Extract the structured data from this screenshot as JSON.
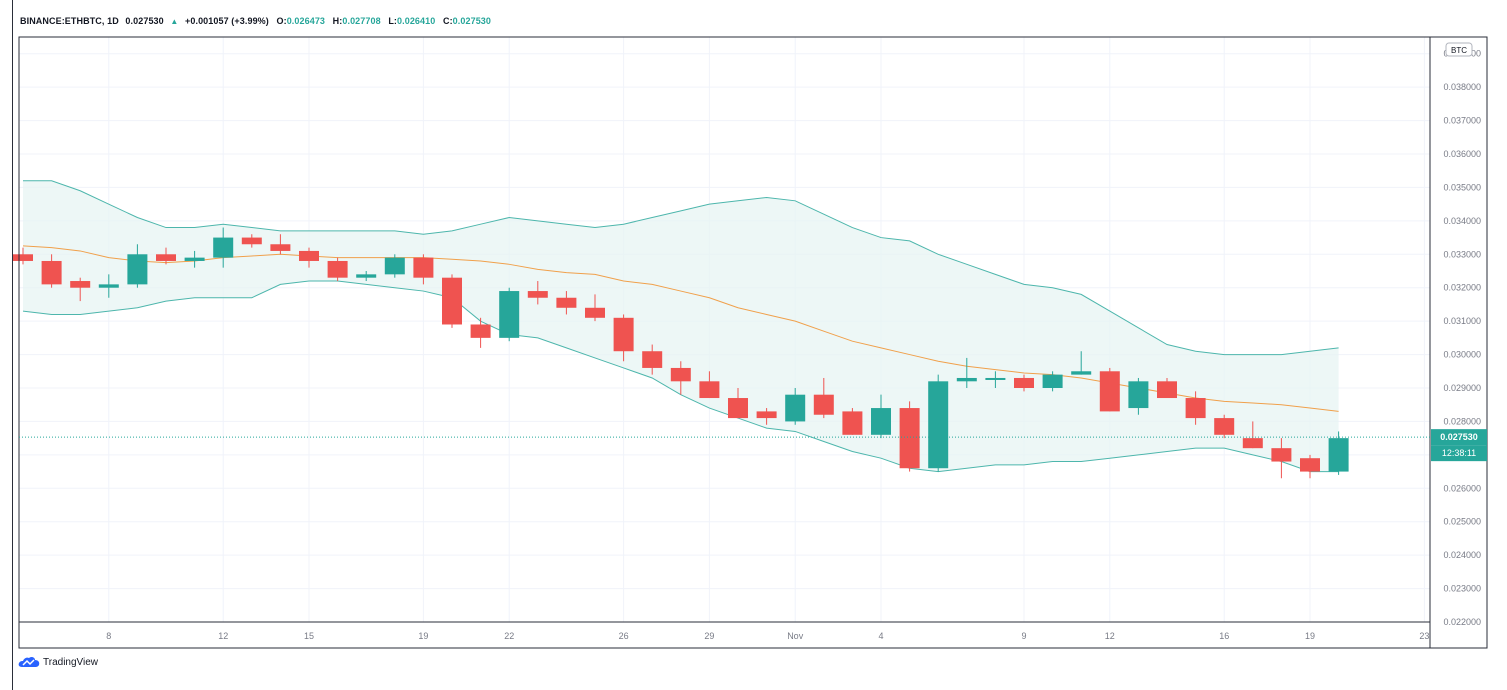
{
  "header": {
    "symbol": "BINANCE:ETHBTC, 1D",
    "last": "0.027530",
    "change": "+0.001057 (+3.99%)",
    "open_label": "O:",
    "open": "0.026473",
    "high_label": "H:",
    "high": "0.027708",
    "low_label": "L:",
    "low": "0.026410",
    "close_label": "C:",
    "close": "0.027530"
  },
  "currency_badge": "BTC",
  "price_tag": {
    "value": "0.027530",
    "countdown": "12:38:11"
  },
  "footer": {
    "brand": "TradingView"
  },
  "colors": {
    "up": "#26a69a",
    "down": "#ef5350",
    "band": "#4db6ac",
    "band_fill": "#e6f4f2",
    "basis": "#f0a04b",
    "grid": "#f0f3fa",
    "axis": "#787b86"
  },
  "chart_data": {
    "type": "candlestick",
    "symbol": "BINANCE:ETHBTC",
    "interval": "1D",
    "indicator": "Bollinger Bands",
    "ylim": [
      0.022,
      0.0395
    ],
    "y_ticks": [
      "0.039000",
      "0.038000",
      "0.037000",
      "0.036000",
      "0.035000",
      "0.034000",
      "0.033000",
      "0.032000",
      "0.031000",
      "0.030000",
      "0.029000",
      "0.028000",
      "0.027000",
      "0.026000",
      "0.025000",
      "0.024000",
      "0.023000",
      "0.022000"
    ],
    "x_ticks": [
      {
        "i": 3,
        "label": "8"
      },
      {
        "i": 7,
        "label": "12"
      },
      {
        "i": 10,
        "label": "15"
      },
      {
        "i": 14,
        "label": "19"
      },
      {
        "i": 17,
        "label": "22"
      },
      {
        "i": 21,
        "label": "26"
      },
      {
        "i": 24,
        "label": "29"
      },
      {
        "i": 27,
        "label": "Nov"
      },
      {
        "i": 30,
        "label": "4"
      },
      {
        "i": 35,
        "label": "9"
      },
      {
        "i": 38,
        "label": "12"
      },
      {
        "i": 42,
        "label": "16"
      },
      {
        "i": 45,
        "label": "19"
      },
      {
        "i": 49,
        "label": "23"
      }
    ],
    "candles": [
      {
        "o": 0.033,
        "h": 0.0332,
        "l": 0.0327,
        "c": 0.0328
      },
      {
        "o": 0.0328,
        "h": 0.033,
        "l": 0.032,
        "c": 0.0321
      },
      {
        "o": 0.0322,
        "h": 0.0323,
        "l": 0.0316,
        "c": 0.032
      },
      {
        "o": 0.032,
        "h": 0.0324,
        "l": 0.0317,
        "c": 0.0321
      },
      {
        "o": 0.0321,
        "h": 0.0333,
        "l": 0.032,
        "c": 0.033
      },
      {
        "o": 0.033,
        "h": 0.0332,
        "l": 0.0327,
        "c": 0.0328
      },
      {
        "o": 0.0328,
        "h": 0.0331,
        "l": 0.0326,
        "c": 0.0329
      },
      {
        "o": 0.0329,
        "h": 0.0338,
        "l": 0.0326,
        "c": 0.0335
      },
      {
        "o": 0.0335,
        "h": 0.0336,
        "l": 0.0332,
        "c": 0.0333
      },
      {
        "o": 0.0333,
        "h": 0.0336,
        "l": 0.033,
        "c": 0.0331
      },
      {
        "o": 0.0331,
        "h": 0.0332,
        "l": 0.0326,
        "c": 0.0328
      },
      {
        "o": 0.0328,
        "h": 0.0329,
        "l": 0.0322,
        "c": 0.0323
      },
      {
        "o": 0.0323,
        "h": 0.0325,
        "l": 0.0322,
        "c": 0.0324
      },
      {
        "o": 0.0324,
        "h": 0.033,
        "l": 0.0323,
        "c": 0.0329
      },
      {
        "o": 0.0329,
        "h": 0.033,
        "l": 0.0321,
        "c": 0.0323
      },
      {
        "o": 0.0323,
        "h": 0.0324,
        "l": 0.0308,
        "c": 0.0309
      },
      {
        "o": 0.0309,
        "h": 0.0311,
        "l": 0.0302,
        "c": 0.0305
      },
      {
        "o": 0.0305,
        "h": 0.032,
        "l": 0.0304,
        "c": 0.0319
      },
      {
        "o": 0.0319,
        "h": 0.0322,
        "l": 0.0315,
        "c": 0.0317
      },
      {
        "o": 0.0317,
        "h": 0.0319,
        "l": 0.0312,
        "c": 0.0314
      },
      {
        "o": 0.0314,
        "h": 0.0318,
        "l": 0.031,
        "c": 0.0311
      },
      {
        "o": 0.0311,
        "h": 0.0312,
        "l": 0.0298,
        "c": 0.0301
      },
      {
        "o": 0.0301,
        "h": 0.0303,
        "l": 0.0294,
        "c": 0.0296
      },
      {
        "o": 0.0296,
        "h": 0.0298,
        "l": 0.0288,
        "c": 0.0292
      },
      {
        "o": 0.0292,
        "h": 0.0295,
        "l": 0.0287,
        "c": 0.0287
      },
      {
        "o": 0.0287,
        "h": 0.029,
        "l": 0.0281,
        "c": 0.0281
      },
      {
        "o": 0.0283,
        "h": 0.0284,
        "l": 0.0279,
        "c": 0.0281
      },
      {
        "o": 0.028,
        "h": 0.029,
        "l": 0.0279,
        "c": 0.0288
      },
      {
        "o": 0.0288,
        "h": 0.0293,
        "l": 0.0281,
        "c": 0.0282
      },
      {
        "o": 0.0283,
        "h": 0.0284,
        "l": 0.0276,
        "c": 0.0276
      },
      {
        "o": 0.0276,
        "h": 0.0288,
        "l": 0.0275,
        "c": 0.0284
      },
      {
        "o": 0.0284,
        "h": 0.0286,
        "l": 0.0265,
        "c": 0.0266
      },
      {
        "o": 0.0266,
        "h": 0.0294,
        "l": 0.0265,
        "c": 0.0292
      },
      {
        "o": 0.0292,
        "h": 0.0299,
        "l": 0.029,
        "c": 0.0293
      },
      {
        "o": 0.0293,
        "h": 0.0295,
        "l": 0.029,
        "c": 0.0293
      },
      {
        "o": 0.0293,
        "h": 0.0294,
        "l": 0.0289,
        "c": 0.029
      },
      {
        "o": 0.029,
        "h": 0.0295,
        "l": 0.0289,
        "c": 0.0294
      },
      {
        "o": 0.0294,
        "h": 0.0301,
        "l": 0.0294,
        "c": 0.0295
      },
      {
        "o": 0.0295,
        "h": 0.0296,
        "l": 0.0283,
        "c": 0.0283
      },
      {
        "o": 0.0284,
        "h": 0.0293,
        "l": 0.0282,
        "c": 0.0292
      },
      {
        "o": 0.0292,
        "h": 0.0293,
        "l": 0.0287,
        "c": 0.0287
      },
      {
        "o": 0.0287,
        "h": 0.0289,
        "l": 0.0279,
        "c": 0.0281
      },
      {
        "o": 0.0281,
        "h": 0.0282,
        "l": 0.0275,
        "c": 0.0276
      },
      {
        "o": 0.0275,
        "h": 0.028,
        "l": 0.0272,
        "c": 0.0272
      },
      {
        "o": 0.0272,
        "h": 0.0275,
        "l": 0.0263,
        "c": 0.0268
      },
      {
        "o": 0.0269,
        "h": 0.027,
        "l": 0.0263,
        "c": 0.0265
      },
      {
        "o": 0.0265,
        "h": 0.0277,
        "l": 0.0264,
        "c": 0.0275
      }
    ],
    "basis": [
      0.03325,
      0.0332,
      0.0331,
      0.0329,
      0.0328,
      0.03275,
      0.0328,
      0.0329,
      0.03295,
      0.033,
      0.03295,
      0.0329,
      0.0329,
      0.0329,
      0.0329,
      0.03285,
      0.0328,
      0.0327,
      0.03255,
      0.03245,
      0.0324,
      0.0322,
      0.0321,
      0.0319,
      0.0317,
      0.0314,
      0.0312,
      0.031,
      0.0307,
      0.0304,
      0.0302,
      0.03,
      0.0298,
      0.02965,
      0.02955,
      0.02945,
      0.0294,
      0.0293,
      0.02915,
      0.029,
      0.02885,
      0.0287,
      0.0286,
      0.02855,
      0.0285,
      0.0284,
      0.0283
    ],
    "upper": [
      0.0352,
      0.0352,
      0.0349,
      0.0345,
      0.0341,
      0.0338,
      0.0338,
      0.0339,
      0.0338,
      0.0337,
      0.0337,
      0.0337,
      0.0337,
      0.0337,
      0.0336,
      0.0337,
      0.0339,
      0.0341,
      0.034,
      0.0339,
      0.0338,
      0.0339,
      0.0341,
      0.0343,
      0.0345,
      0.0346,
      0.0347,
      0.0346,
      0.0342,
      0.0338,
      0.0335,
      0.0334,
      0.033,
      0.0327,
      0.0324,
      0.0321,
      0.032,
      0.0318,
      0.0313,
      0.0308,
      0.0303,
      0.0301,
      0.03,
      0.03,
      0.03,
      0.0301,
      0.0302
    ],
    "lower": [
      0.0313,
      0.0312,
      0.0312,
      0.0313,
      0.0314,
      0.0316,
      0.0317,
      0.0317,
      0.0317,
      0.0321,
      0.0322,
      0.0322,
      0.0321,
      0.032,
      0.0319,
      0.0317,
      0.031,
      0.0306,
      0.0305,
      0.0302,
      0.0299,
      0.0296,
      0.0293,
      0.0288,
      0.0284,
      0.0281,
      0.0278,
      0.0277,
      0.0274,
      0.0271,
      0.0269,
      0.0266,
      0.0265,
      0.0266,
      0.0267,
      0.0267,
      0.0268,
      0.0268,
      0.0269,
      0.027,
      0.0271,
      0.0272,
      0.0272,
      0.027,
      0.0268,
      0.0265,
      0.0265
    ]
  }
}
